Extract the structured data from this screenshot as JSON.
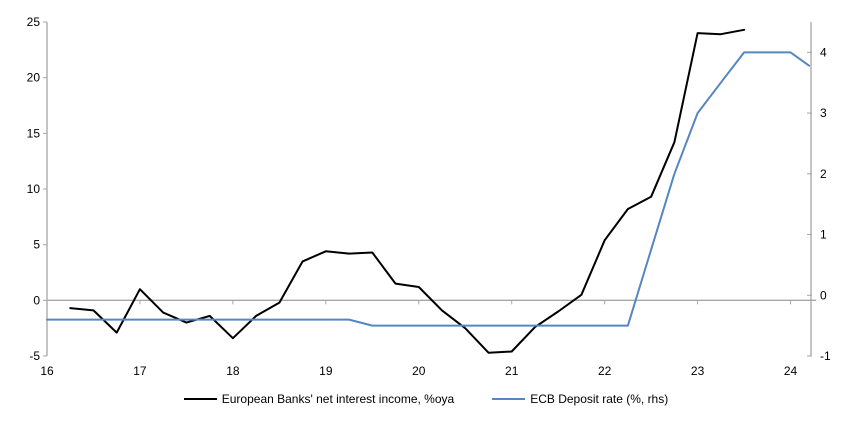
{
  "chart_data": {
    "type": "line",
    "title": "",
    "xlabel": "",
    "ylabel_left": "",
    "ylabel_right": "",
    "grid": "zero-line-only",
    "legend_position": "bottom",
    "axis_color": "#a6a6a6",
    "text_color": "#000000",
    "x_axis": {
      "ticks": [
        16,
        17,
        18,
        19,
        20,
        21,
        22,
        23,
        24
      ],
      "range": [
        16,
        24.22
      ]
    },
    "left_axis": {
      "ticks": [
        -5,
        0,
        5,
        10,
        15,
        20,
        25
      ],
      "range": [
        -5,
        25
      ]
    },
    "right_axis": {
      "ticks": [
        -1,
        0,
        1,
        2,
        3,
        4
      ],
      "range": [
        -1,
        4.5
      ]
    },
    "series": [
      {
        "name": "European Banks' net interest income, %oya",
        "axis": "left",
        "color": "#000000",
        "x": [
          16.25,
          16.5,
          16.75,
          17.0,
          17.25,
          17.5,
          17.75,
          18.0,
          18.25,
          18.5,
          18.75,
          19.0,
          19.25,
          19.5,
          19.75,
          20.0,
          20.25,
          20.5,
          20.75,
          21.0,
          21.25,
          21.5,
          21.75,
          22.0,
          22.25,
          22.5,
          22.75,
          23.0,
          23.25,
          23.5
        ],
        "values": [
          -0.7,
          -0.9,
          -2.9,
          1.0,
          -1.1,
          -2.0,
          -1.4,
          -3.4,
          -1.4,
          -0.2,
          3.5,
          4.4,
          4.2,
          4.3,
          1.5,
          1.2,
          -0.9,
          -2.5,
          -4.7,
          -4.6,
          -2.4,
          -1.0,
          0.5,
          5.4,
          8.2,
          9.3,
          14.2,
          24.0,
          23.9,
          24.3
        ]
      },
      {
        "name": "ECB Deposit rate (%, rhs)",
        "axis": "right",
        "color": "#5586c0",
        "x": [
          16.0,
          19.25,
          19.5,
          22.25,
          22.5,
          22.75,
          23.0,
          23.25,
          23.5,
          24.0,
          24.2
        ],
        "values": [
          -0.4,
          -0.4,
          -0.5,
          -0.5,
          0.75,
          2.0,
          3.0,
          3.5,
          4.0,
          4.0,
          3.78
        ]
      }
    ]
  }
}
